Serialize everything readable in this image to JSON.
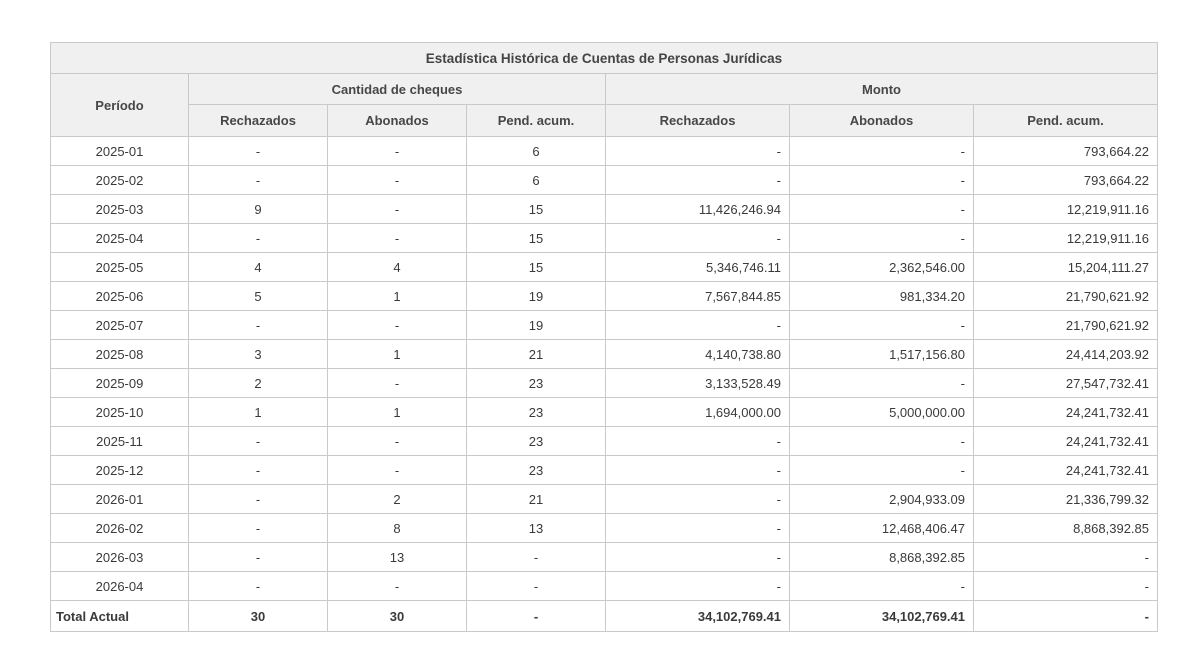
{
  "table": {
    "title": "Estadística Histórica de Cuentas de Personas Jurídicas",
    "col_period": "Período",
    "group_cantidad": "Cantidad de cheques",
    "group_monto": "Monto",
    "subheaders": [
      "Rechazados",
      "Abonados",
      "Pend. acum."
    ],
    "rows": [
      {
        "period": "2025-01",
        "cant": [
          "-",
          "-",
          "6"
        ],
        "monto": [
          "-",
          "-",
          "793,664.22"
        ]
      },
      {
        "period": "2025-02",
        "cant": [
          "-",
          "-",
          "6"
        ],
        "monto": [
          "-",
          "-",
          "793,664.22"
        ]
      },
      {
        "period": "2025-03",
        "cant": [
          "9",
          "-",
          "15"
        ],
        "monto": [
          "11,426,246.94",
          "-",
          "12,219,911.16"
        ]
      },
      {
        "period": "2025-04",
        "cant": [
          "-",
          "-",
          "15"
        ],
        "monto": [
          "-",
          "-",
          "12,219,911.16"
        ]
      },
      {
        "period": "2025-05",
        "cant": [
          "4",
          "4",
          "15"
        ],
        "monto": [
          "5,346,746.11",
          "2,362,546.00",
          "15,204,111.27"
        ]
      },
      {
        "period": "2025-06",
        "cant": [
          "5",
          "1",
          "19"
        ],
        "monto": [
          "7,567,844.85",
          "981,334.20",
          "21,790,621.92"
        ]
      },
      {
        "period": "2025-07",
        "cant": [
          "-",
          "-",
          "19"
        ],
        "monto": [
          "-",
          "-",
          "21,790,621.92"
        ]
      },
      {
        "period": "2025-08",
        "cant": [
          "3",
          "1",
          "21"
        ],
        "monto": [
          "4,140,738.80",
          "1,517,156.80",
          "24,414,203.92"
        ]
      },
      {
        "period": "2025-09",
        "cant": [
          "2",
          "-",
          "23"
        ],
        "monto": [
          "3,133,528.49",
          "-",
          "27,547,732.41"
        ]
      },
      {
        "period": "2025-10",
        "cant": [
          "1",
          "1",
          "23"
        ],
        "monto": [
          "1,694,000.00",
          "5,000,000.00",
          "24,241,732.41"
        ]
      },
      {
        "period": "2025-11",
        "cant": [
          "-",
          "-",
          "23"
        ],
        "monto": [
          "-",
          "-",
          "24,241,732.41"
        ]
      },
      {
        "period": "2025-12",
        "cant": [
          "-",
          "-",
          "23"
        ],
        "monto": [
          "-",
          "-",
          "24,241,732.41"
        ]
      },
      {
        "period": "2026-01",
        "cant": [
          "-",
          "2",
          "21"
        ],
        "monto": [
          "-",
          "2,904,933.09",
          "21,336,799.32"
        ]
      },
      {
        "period": "2026-02",
        "cant": [
          "-",
          "8",
          "13"
        ],
        "monto": [
          "-",
          "12,468,406.47",
          "8,868,392.85"
        ]
      },
      {
        "period": "2026-03",
        "cant": [
          "-",
          "13",
          "-"
        ],
        "monto": [
          "-",
          "8,868,392.85",
          "-"
        ]
      },
      {
        "period": "2026-04",
        "cant": [
          "-",
          "-",
          "-"
        ],
        "monto": [
          "-",
          "-",
          "-"
        ]
      }
    ],
    "total": {
      "label": "Total Actual",
      "cant": [
        "30",
        "30",
        "-"
      ],
      "monto": [
        "34,102,769.41",
        "34,102,769.41",
        "-"
      ]
    }
  }
}
